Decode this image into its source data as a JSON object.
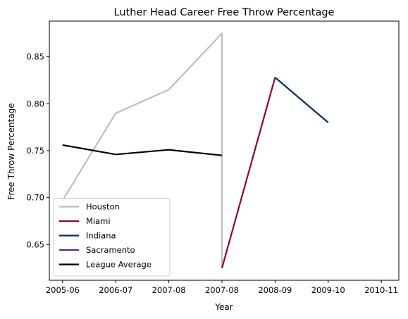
{
  "chart_data": {
    "type": "line",
    "title": "Luther Head Career Free Throw Percentage",
    "xlabel": "Year",
    "ylabel": "Free Throw Percentage",
    "x_ticks": [
      "2005-06",
      "2006-07",
      "2007-08",
      "2007-08",
      "2008-09",
      "2009-10",
      "2010-11"
    ],
    "x_tick_positions": [
      2005.0,
      2006.0,
      2007.0,
      2008.0,
      2009.0,
      2010.0,
      2011.0
    ],
    "xlim": [
      2004.75,
      2011.33
    ],
    "ylim": [
      0.612,
      0.888
    ],
    "y_ticks": [
      0.65,
      0.7,
      0.75,
      0.8,
      0.85
    ],
    "grid": false,
    "legend_position": "lower-left",
    "series": [
      {
        "name": "Houston",
        "color": "#bebebe",
        "x": [
          2005.0,
          2006.0,
          2007.0,
          2008.0,
          2008.0
        ],
        "y": [
          0.697,
          0.79,
          0.815,
          0.875,
          0.625
        ]
      },
      {
        "name": "Miami",
        "color": "#98002e",
        "x": [
          2008.0,
          2009.0
        ],
        "y": [
          0.625,
          0.828
        ]
      },
      {
        "name": "Indiana",
        "color": "#002d62",
        "x": [
          2009.0,
          2010.0
        ],
        "y": [
          0.828,
          0.78
        ]
      },
      {
        "name": "Sacramento",
        "color": "#5a2d81",
        "x": [],
        "y": []
      },
      {
        "name": "League Average",
        "color": "#000000",
        "x": [
          2005.0,
          2006.0,
          2007.0,
          2008.0
        ],
        "y": [
          0.756,
          0.746,
          0.751,
          0.745
        ]
      }
    ]
  }
}
